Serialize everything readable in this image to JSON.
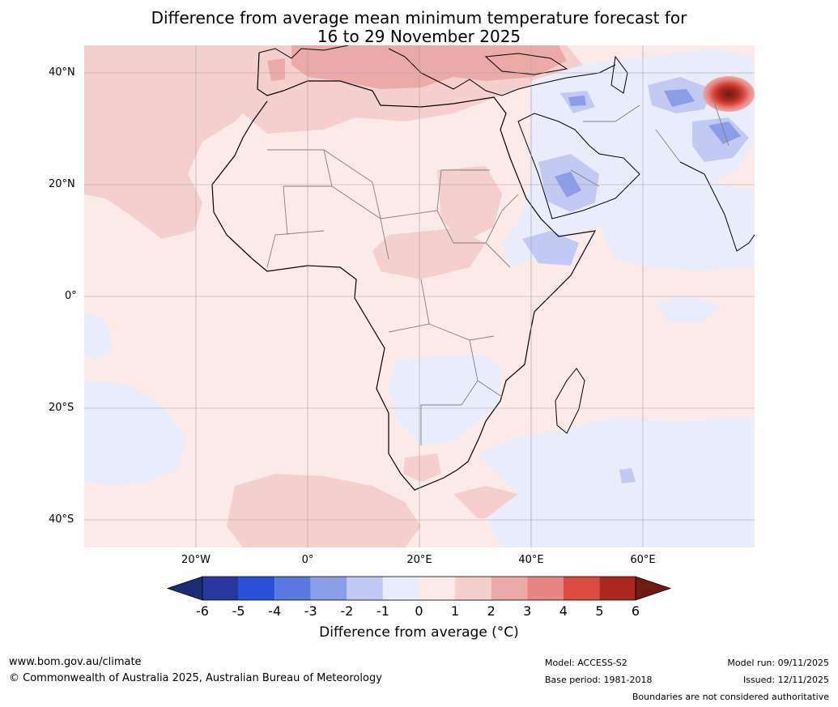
{
  "title": {
    "line1": "Difference from average mean minimum temperature forecast for",
    "line2": "16 to 29 November 2025"
  },
  "map": {
    "lat_labels": [
      "40°N",
      "20°N",
      "0°",
      "20°S",
      "40°S"
    ],
    "lon_labels": [
      "20°W",
      "0°",
      "20°E",
      "40°E",
      "60°E"
    ]
  },
  "colorbar": {
    "ticks": [
      "-6",
      "-5",
      "-4",
      "-3",
      "-2",
      "-1",
      "0",
      "1",
      "2",
      "3",
      "4",
      "5",
      "6"
    ],
    "colors": [
      "#28389f",
      "#2b4fd9",
      "#5b78e0",
      "#8b9de8",
      "#c2c9f3",
      "#e9ecfb",
      "#fceae8",
      "#f4cfcd",
      "#ecaaa7",
      "#e68581",
      "#d94a41",
      "#a9281e"
    ],
    "low_color": "#1c2d75",
    "high_color": "#6e1b13",
    "label": "Difference from average (°C)"
  },
  "footer": {
    "url": "www.bom.gov.au/climate",
    "copyright": "© Commonwealth of Australia 2025, Australian Bureau of Meteorology",
    "model": "Model: ACCESS-S2",
    "base_period": "Base period: 1981-2018",
    "model_run": "Model run: 09/11/2025",
    "issued": "Issued: 12/11/2025",
    "disclaimer": "Boundaries are not considered authoritative"
  }
}
